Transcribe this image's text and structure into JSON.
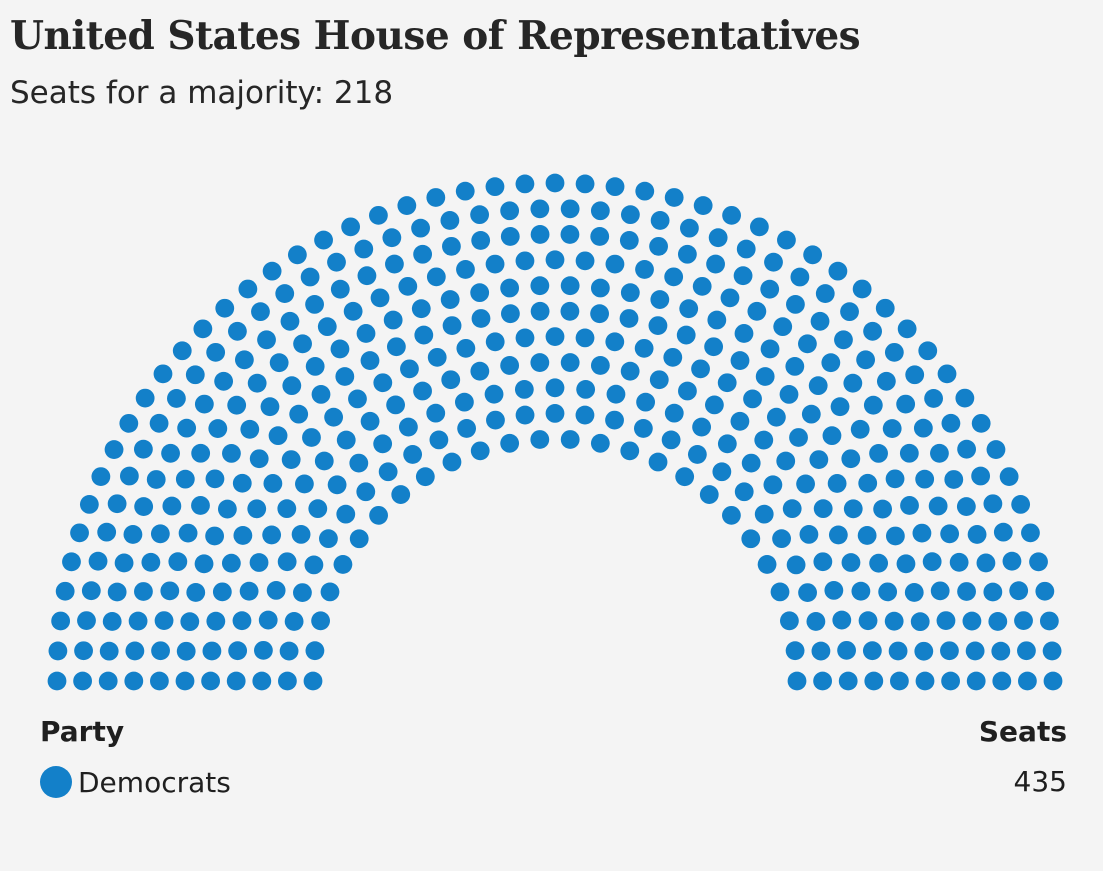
{
  "title": "United States House of Representatives",
  "subtitle": "Seats for a majority: 218",
  "legend": {
    "party_header": "Party",
    "seats_header": "Seats"
  },
  "chart_data": {
    "type": "parliament",
    "title": "United States House of Representatives",
    "subtitle": "Seats for a majority: 218",
    "total_seats": 435,
    "majority": 218,
    "parties": [
      {
        "name": "Democrats",
        "seats": 435,
        "color": "#1380c9"
      }
    ]
  }
}
